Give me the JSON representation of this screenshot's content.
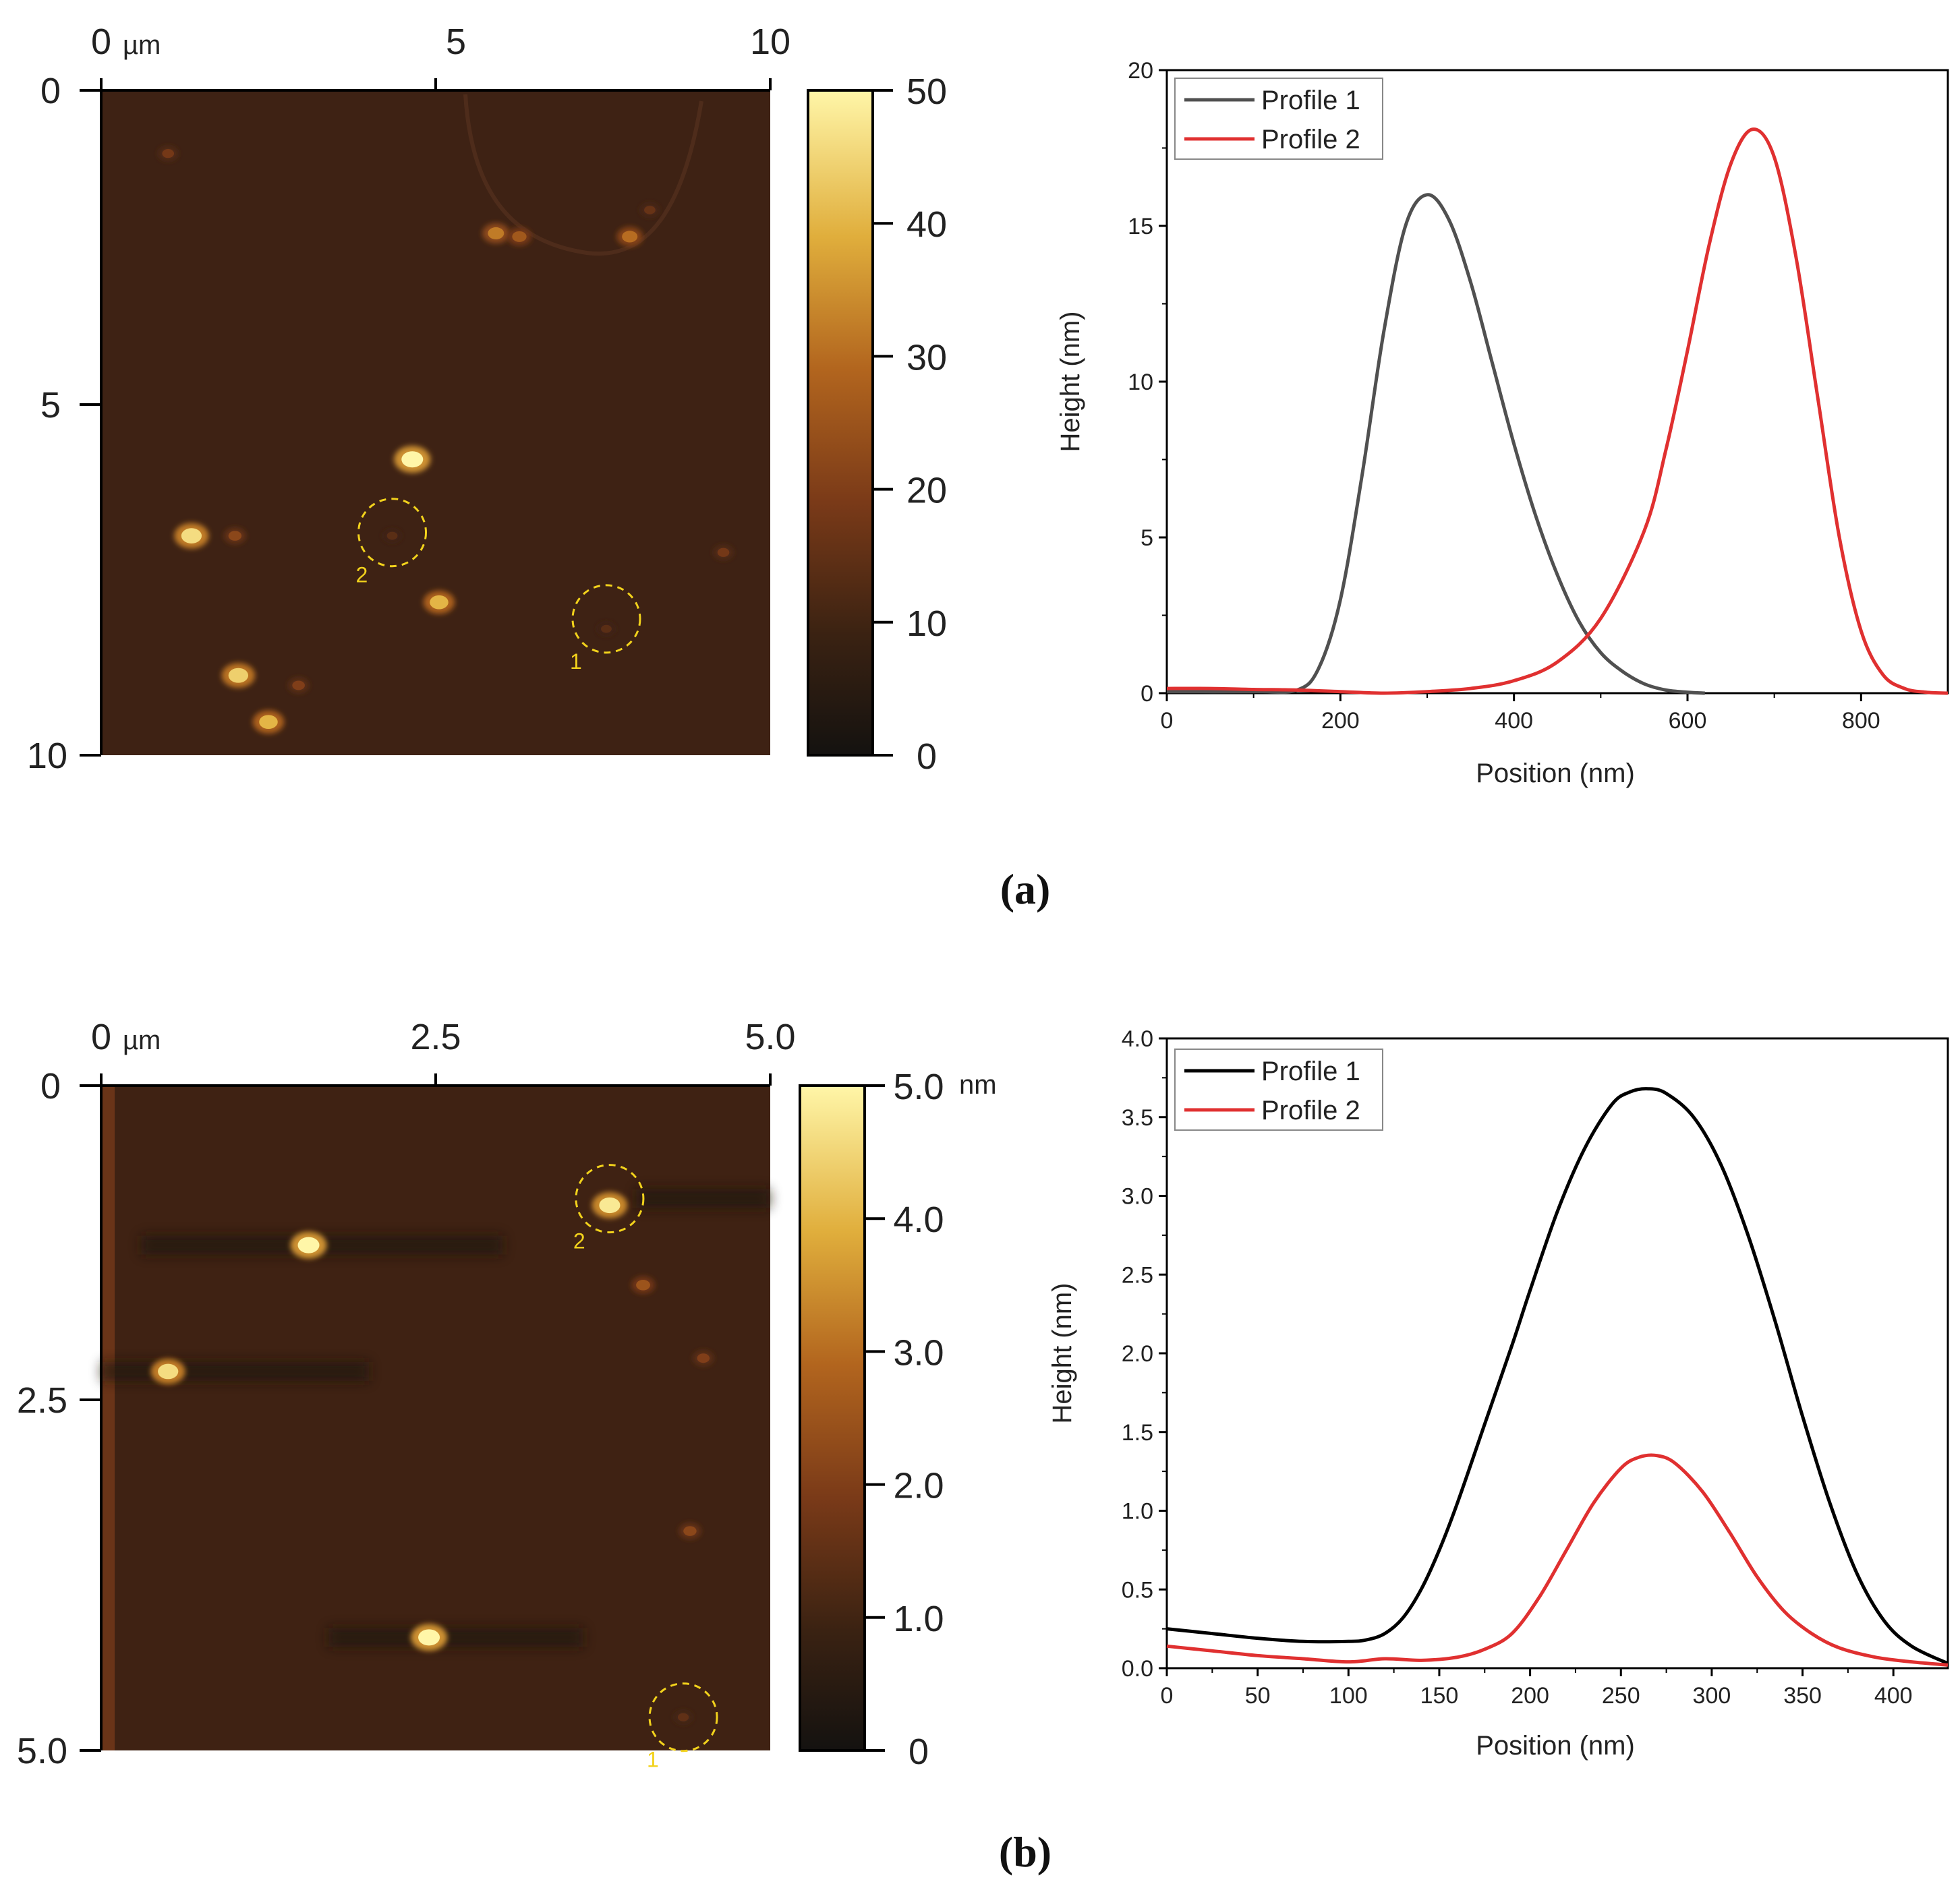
{
  "panel_labels": {
    "a": "(a)",
    "b": "(b)"
  },
  "chart_data": [
    {
      "type": "heatmap",
      "id": "afm-a",
      "title": "",
      "x_ticks": [
        "0",
        "5",
        "10"
      ],
      "x_unit": "µm",
      "y_ticks": [
        "0",
        "5",
        "10"
      ],
      "xlim": [
        0,
        10
      ],
      "ylim": [
        0,
        10
      ],
      "colorbar": {
        "ticks": [
          "0",
          "10",
          "20",
          "30",
          "40",
          "50"
        ],
        "range": [
          0,
          50
        ],
        "unit": ""
      },
      "features": [
        {
          "x": 1.0,
          "y": 0.95,
          "h": 18
        },
        {
          "x": 5.9,
          "y": 2.15,
          "h": 32
        },
        {
          "x": 6.25,
          "y": 2.2,
          "h": 26
        },
        {
          "x": 7.9,
          "y": 2.2,
          "h": 30
        },
        {
          "x": 8.2,
          "y": 1.8,
          "h": 16
        },
        {
          "x": 4.65,
          "y": 5.55,
          "h": 50
        },
        {
          "x": 1.35,
          "y": 6.7,
          "h": 46
        },
        {
          "x": 2.0,
          "y": 6.7,
          "h": 22
        },
        {
          "x": 4.35,
          "y": 6.7,
          "h": 14
        },
        {
          "x": 5.05,
          "y": 7.7,
          "h": 40
        },
        {
          "x": 7.55,
          "y": 8.1,
          "h": 14
        },
        {
          "x": 9.3,
          "y": 6.95,
          "h": 18
        },
        {
          "x": 2.05,
          "y": 8.8,
          "h": 44
        },
        {
          "x": 2.95,
          "y": 8.95,
          "h": 20
        },
        {
          "x": 2.5,
          "y": 9.5,
          "h": 40
        }
      ],
      "circles": [
        {
          "label": "2",
          "x": 4.35,
          "y": 6.65
        },
        {
          "label": "1",
          "x": 7.55,
          "y": 7.95
        }
      ]
    },
    {
      "type": "line",
      "id": "profile-a",
      "title": "",
      "xlabel": "Position (nm)",
      "ylabel": "Height (nm)",
      "xlim": [
        0,
        900
      ],
      "ylim": [
        0,
        20
      ],
      "x_ticks": [
        0,
        200,
        400,
        600,
        800
      ],
      "y_ticks": [
        0,
        5,
        10,
        15,
        20
      ],
      "legend": "top-left",
      "series": [
        {
          "name": "Profile 1",
          "color": "#505050",
          "x": [
            0,
            100,
            150,
            175,
            200,
            225,
            250,
            275,
            300,
            325,
            350,
            375,
            400,
            425,
            450,
            475,
            500,
            525,
            550,
            575,
            600,
            620
          ],
          "y": [
            0.05,
            0.05,
            0.1,
            0.8,
            3.0,
            7.0,
            11.6,
            15.0,
            16.0,
            15.2,
            13.2,
            10.6,
            8.0,
            5.7,
            3.8,
            2.3,
            1.3,
            0.7,
            0.3,
            0.1,
            0.03,
            0.0
          ]
        },
        {
          "name": "Profile 2",
          "color": "#e03030",
          "x": [
            0,
            50,
            100,
            150,
            200,
            250,
            300,
            350,
            400,
            450,
            500,
            550,
            575,
            600,
            625,
            650,
            675,
            700,
            725,
            750,
            775,
            800,
            825,
            850,
            875,
            900
          ],
          "y": [
            0.15,
            0.15,
            0.12,
            0.1,
            0.05,
            0.0,
            0.05,
            0.15,
            0.4,
            1.0,
            2.4,
            5.2,
            7.8,
            11.0,
            14.4,
            17.0,
            18.1,
            17.2,
            14.0,
            9.5,
            5.0,
            2.0,
            0.6,
            0.15,
            0.03,
            0.0
          ]
        }
      ]
    },
    {
      "type": "heatmap",
      "id": "afm-b",
      "title": "",
      "x_ticks": [
        "0",
        "2.5",
        "5.0"
      ],
      "x_unit": "µm",
      "y_ticks": [
        "0",
        "2.5",
        "5.0"
      ],
      "xlim": [
        0,
        5
      ],
      "ylim": [
        0,
        5
      ],
      "colorbar": {
        "ticks": [
          "0",
          "1.0",
          "2.0",
          "3.0",
          "4.0",
          "5.0"
        ],
        "range": [
          0,
          5
        ],
        "unit": "nm"
      },
      "features": [
        {
          "x": 1.55,
          "y": 1.2,
          "h": 5.0
        },
        {
          "x": 0.5,
          "y": 2.15,
          "h": 4.6
        },
        {
          "x": 3.8,
          "y": 0.9,
          "h": 4.8
        },
        {
          "x": 4.05,
          "y": 1.5,
          "h": 2.5
        },
        {
          "x": 4.5,
          "y": 2.05,
          "h": 2.0
        },
        {
          "x": 4.4,
          "y": 3.35,
          "h": 2.2
        },
        {
          "x": 2.45,
          "y": 4.15,
          "h": 5.0
        },
        {
          "x": 4.35,
          "y": 4.75,
          "h": 1.5
        }
      ],
      "streaks": [
        {
          "y": 1.2,
          "x0": 0.3,
          "x1": 3.0
        },
        {
          "y": 2.15,
          "x0": 0.0,
          "x1": 2.0
        },
        {
          "y": 0.85,
          "x0": 4.0,
          "x1": 5.0
        },
        {
          "y": 4.15,
          "x0": 1.7,
          "x1": 3.6
        }
      ],
      "circles": [
        {
          "label": "2",
          "x": 3.8,
          "y": 0.85
        },
        {
          "label": "1",
          "x": 4.35,
          "y": 4.75
        }
      ]
    },
    {
      "type": "line",
      "id": "profile-b",
      "title": "",
      "xlabel": "Position (nm)",
      "ylabel": "Height (nm)",
      "xlim": [
        0,
        430
      ],
      "ylim": [
        0,
        4.0
      ],
      "x_ticks": [
        0,
        50,
        100,
        150,
        200,
        250,
        300,
        350,
        400
      ],
      "y_ticks": [
        "0.0",
        "0.5",
        "1.0",
        "1.5",
        "2.0",
        "2.5",
        "3.0",
        "3.5",
        "4.0"
      ],
      "legend": "top-left",
      "series": [
        {
          "name": "Profile 1",
          "color": "#000000",
          "x": [
            0,
            25,
            50,
            75,
            100,
            110,
            120,
            130,
            140,
            150,
            160,
            175,
            190,
            200,
            215,
            230,
            245,
            255,
            265,
            275,
            290,
            305,
            320,
            335,
            350,
            365,
            380,
            395,
            410,
            430
          ],
          "y": [
            0.25,
            0.22,
            0.19,
            0.17,
            0.17,
            0.18,
            0.22,
            0.32,
            0.5,
            0.75,
            1.05,
            1.55,
            2.05,
            2.4,
            2.9,
            3.3,
            3.58,
            3.66,
            3.68,
            3.65,
            3.5,
            3.2,
            2.75,
            2.2,
            1.6,
            1.05,
            0.6,
            0.3,
            0.14,
            0.03
          ]
        },
        {
          "name": "Profile 2",
          "color": "#e03030",
          "x": [
            0,
            25,
            50,
            75,
            100,
            120,
            140,
            160,
            175,
            190,
            205,
            220,
            235,
            250,
            260,
            270,
            280,
            295,
            310,
            325,
            340,
            355,
            370,
            390,
            410,
            430
          ],
          "y": [
            0.14,
            0.11,
            0.08,
            0.06,
            0.04,
            0.06,
            0.05,
            0.07,
            0.12,
            0.22,
            0.45,
            0.75,
            1.05,
            1.27,
            1.34,
            1.35,
            1.3,
            1.12,
            0.86,
            0.58,
            0.36,
            0.22,
            0.13,
            0.07,
            0.04,
            0.02
          ]
        }
      ]
    }
  ]
}
